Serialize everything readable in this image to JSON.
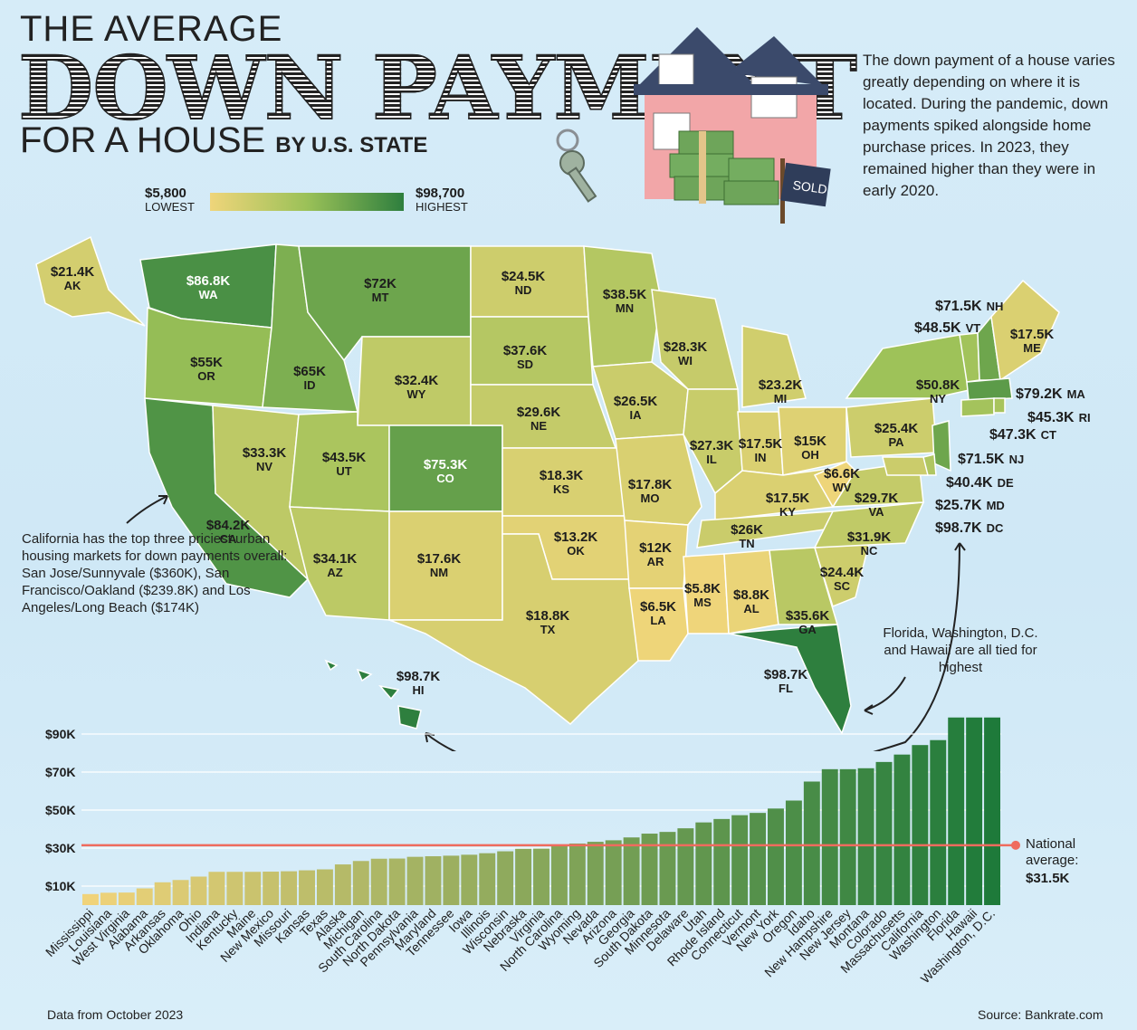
{
  "header": {
    "title_line1": "THE AVERAGE",
    "title_line2": "DOWN PAYMENT",
    "title_line3": "FOR A HOUSE",
    "title_line3_suffix": "BY U.S. STATE"
  },
  "intro_text": "The down payment of a house varies greatly depending on where it is located. During the pandemic, down payments spiked alongside home purchase prices. In 2023, they remained higher than they were in early 2020.",
  "legend": {
    "low_value": "$5,800",
    "low_label": "LOWEST",
    "high_value": "$98,700",
    "high_label": "HIGHEST",
    "colors": {
      "low": "#efd57a",
      "mid": "#9bc158",
      "high": "#2e7f3e"
    }
  },
  "notes": {
    "california": "California has the top three priciest urban housing markets for down payments overall: San Jose/Sunnyvale ($360K), San Francisco/Oakland ($239.8K) and Los Angeles/Long Beach ($174K)",
    "tied_highest": "Florida, Washington, D.C. and Hawaii are all tied for highest"
  },
  "house_sign": "SOLD",
  "map_labels": [
    {
      "abbr": "AK",
      "value": "$21.4K"
    },
    {
      "abbr": "WA",
      "value": "$86.8K"
    },
    {
      "abbr": "MT",
      "value": "$72K"
    },
    {
      "abbr": "ND",
      "value": "$24.5K"
    },
    {
      "abbr": "MN",
      "value": "$38.5K"
    },
    {
      "abbr": "OR",
      "value": "$55K"
    },
    {
      "abbr": "ID",
      "value": "$65K"
    },
    {
      "abbr": "WY",
      "value": "$32.4K"
    },
    {
      "abbr": "SD",
      "value": "$37.6K"
    },
    {
      "abbr": "WI",
      "value": "$28.3K"
    },
    {
      "abbr": "MI",
      "value": "$23.2K"
    },
    {
      "abbr": "IA",
      "value": "$26.5K"
    },
    {
      "abbr": "NE",
      "value": "$29.6K"
    },
    {
      "abbr": "NV",
      "value": "$33.3K"
    },
    {
      "abbr": "UT",
      "value": "$43.5K"
    },
    {
      "abbr": "CO",
      "value": "$75.3K"
    },
    {
      "abbr": "CA",
      "value": "$84.2K"
    },
    {
      "abbr": "KS",
      "value": "$18.3K"
    },
    {
      "abbr": "MO",
      "value": "$17.8K"
    },
    {
      "abbr": "IL",
      "value": "$27.3K"
    },
    {
      "abbr": "IN",
      "value": "$17.5K"
    },
    {
      "abbr": "OH",
      "value": "$15K"
    },
    {
      "abbr": "PA",
      "value": "$25.4K"
    },
    {
      "abbr": "NY",
      "value": "$50.8K"
    },
    {
      "abbr": "ME",
      "value": "$17.5K"
    },
    {
      "abbr": "AZ",
      "value": "$34.1K"
    },
    {
      "abbr": "NM",
      "value": "$17.6K"
    },
    {
      "abbr": "OK",
      "value": "$13.2K"
    },
    {
      "abbr": "AR",
      "value": "$12K"
    },
    {
      "abbr": "TN",
      "value": "$26K"
    },
    {
      "abbr": "KY",
      "value": "$17.5K"
    },
    {
      "abbr": "WV",
      "value": "$6.6K"
    },
    {
      "abbr": "VA",
      "value": "$29.7K"
    },
    {
      "abbr": "NC",
      "value": "$31.9K"
    },
    {
      "abbr": "SC",
      "value": "$24.4K"
    },
    {
      "abbr": "TX",
      "value": "$18.8K"
    },
    {
      "abbr": "LA",
      "value": "$6.5K"
    },
    {
      "abbr": "MS",
      "value": "$5.8K"
    },
    {
      "abbr": "AL",
      "value": "$8.8K"
    },
    {
      "abbr": "GA",
      "value": "$35.6K"
    },
    {
      "abbr": "FL",
      "value": "$98.7K"
    },
    {
      "abbr": "HI",
      "value": "$98.7K"
    }
  ],
  "east_labels": [
    {
      "abbr": "NH",
      "value": "$71.5K"
    },
    {
      "abbr": "VT",
      "value": "$48.5K"
    },
    {
      "abbr": "MA",
      "value": "$79.2K"
    },
    {
      "abbr": "RI",
      "value": "$45.3K"
    },
    {
      "abbr": "CT",
      "value": "$47.3K"
    },
    {
      "abbr": "NJ",
      "value": "$71.5K"
    },
    {
      "abbr": "DE",
      "value": "$40.4K"
    },
    {
      "abbr": "MD",
      "value": "$25.7K"
    },
    {
      "abbr": "DC",
      "value": "$98.7K"
    }
  ],
  "chart_data": {
    "type": "bar",
    "categories": [
      "Mississippi",
      "Louisiana",
      "West Virginia",
      "Alabama",
      "Arkansas",
      "Oklahoma",
      "Ohio",
      "Indiana",
      "Kentucky",
      "Maine",
      "New Mexico",
      "Missouri",
      "Kansas",
      "Texas",
      "Alaska",
      "Michigan",
      "South Carolina",
      "North Dakota",
      "Pennsylvania",
      "Maryland",
      "Tennessee",
      "Iowa",
      "Illinois",
      "Wisconsin",
      "Nebraska",
      "Virginia",
      "North Carolina",
      "Wyoming",
      "Nevada",
      "Arizona",
      "Georgia",
      "South Dakota",
      "Minnesota",
      "Delaware",
      "Utah",
      "Rhode Island",
      "Connecticut",
      "Vermont",
      "New York",
      "Oregon",
      "Idaho",
      "New Hampshire",
      "New Jersey",
      "Montana",
      "Colorado",
      "Massachusetts",
      "California",
      "Washington",
      "Florida",
      "Hawaii",
      "Washington, D.C."
    ],
    "values": [
      5.8,
      6.5,
      6.6,
      8.8,
      12,
      13.2,
      15,
      17.5,
      17.5,
      17.5,
      17.6,
      17.8,
      18.3,
      18.8,
      21.4,
      23.2,
      24.4,
      24.5,
      25.4,
      25.7,
      26,
      26.5,
      27.3,
      28.3,
      29.6,
      29.7,
      31.9,
      32.4,
      33.3,
      34.1,
      35.6,
      37.6,
      38.5,
      40.4,
      43.5,
      45.3,
      47.3,
      48.5,
      50.8,
      55,
      65,
      71.5,
      71.5,
      72,
      75.3,
      79.2,
      84.2,
      86.8,
      98.7,
      98.7,
      98.7
    ],
    "ytick_labels": [
      "$10K",
      "$30K",
      "$50K",
      "$70K",
      "$90K"
    ],
    "ytick_values": [
      10,
      30,
      50,
      70,
      90
    ],
    "ylim": [
      0,
      100
    ],
    "grid": true,
    "reference_line": {
      "value": 31.5,
      "label_line1": "National",
      "label_line2": "average:",
      "label_value": "$31.5K",
      "color": "#ef6b5e"
    },
    "colors": {
      "low": "#f0d37a",
      "high": "#1e7a3a"
    }
  },
  "footer": {
    "left": "Data from October 2023",
    "right": "Source: Bankrate.com"
  }
}
